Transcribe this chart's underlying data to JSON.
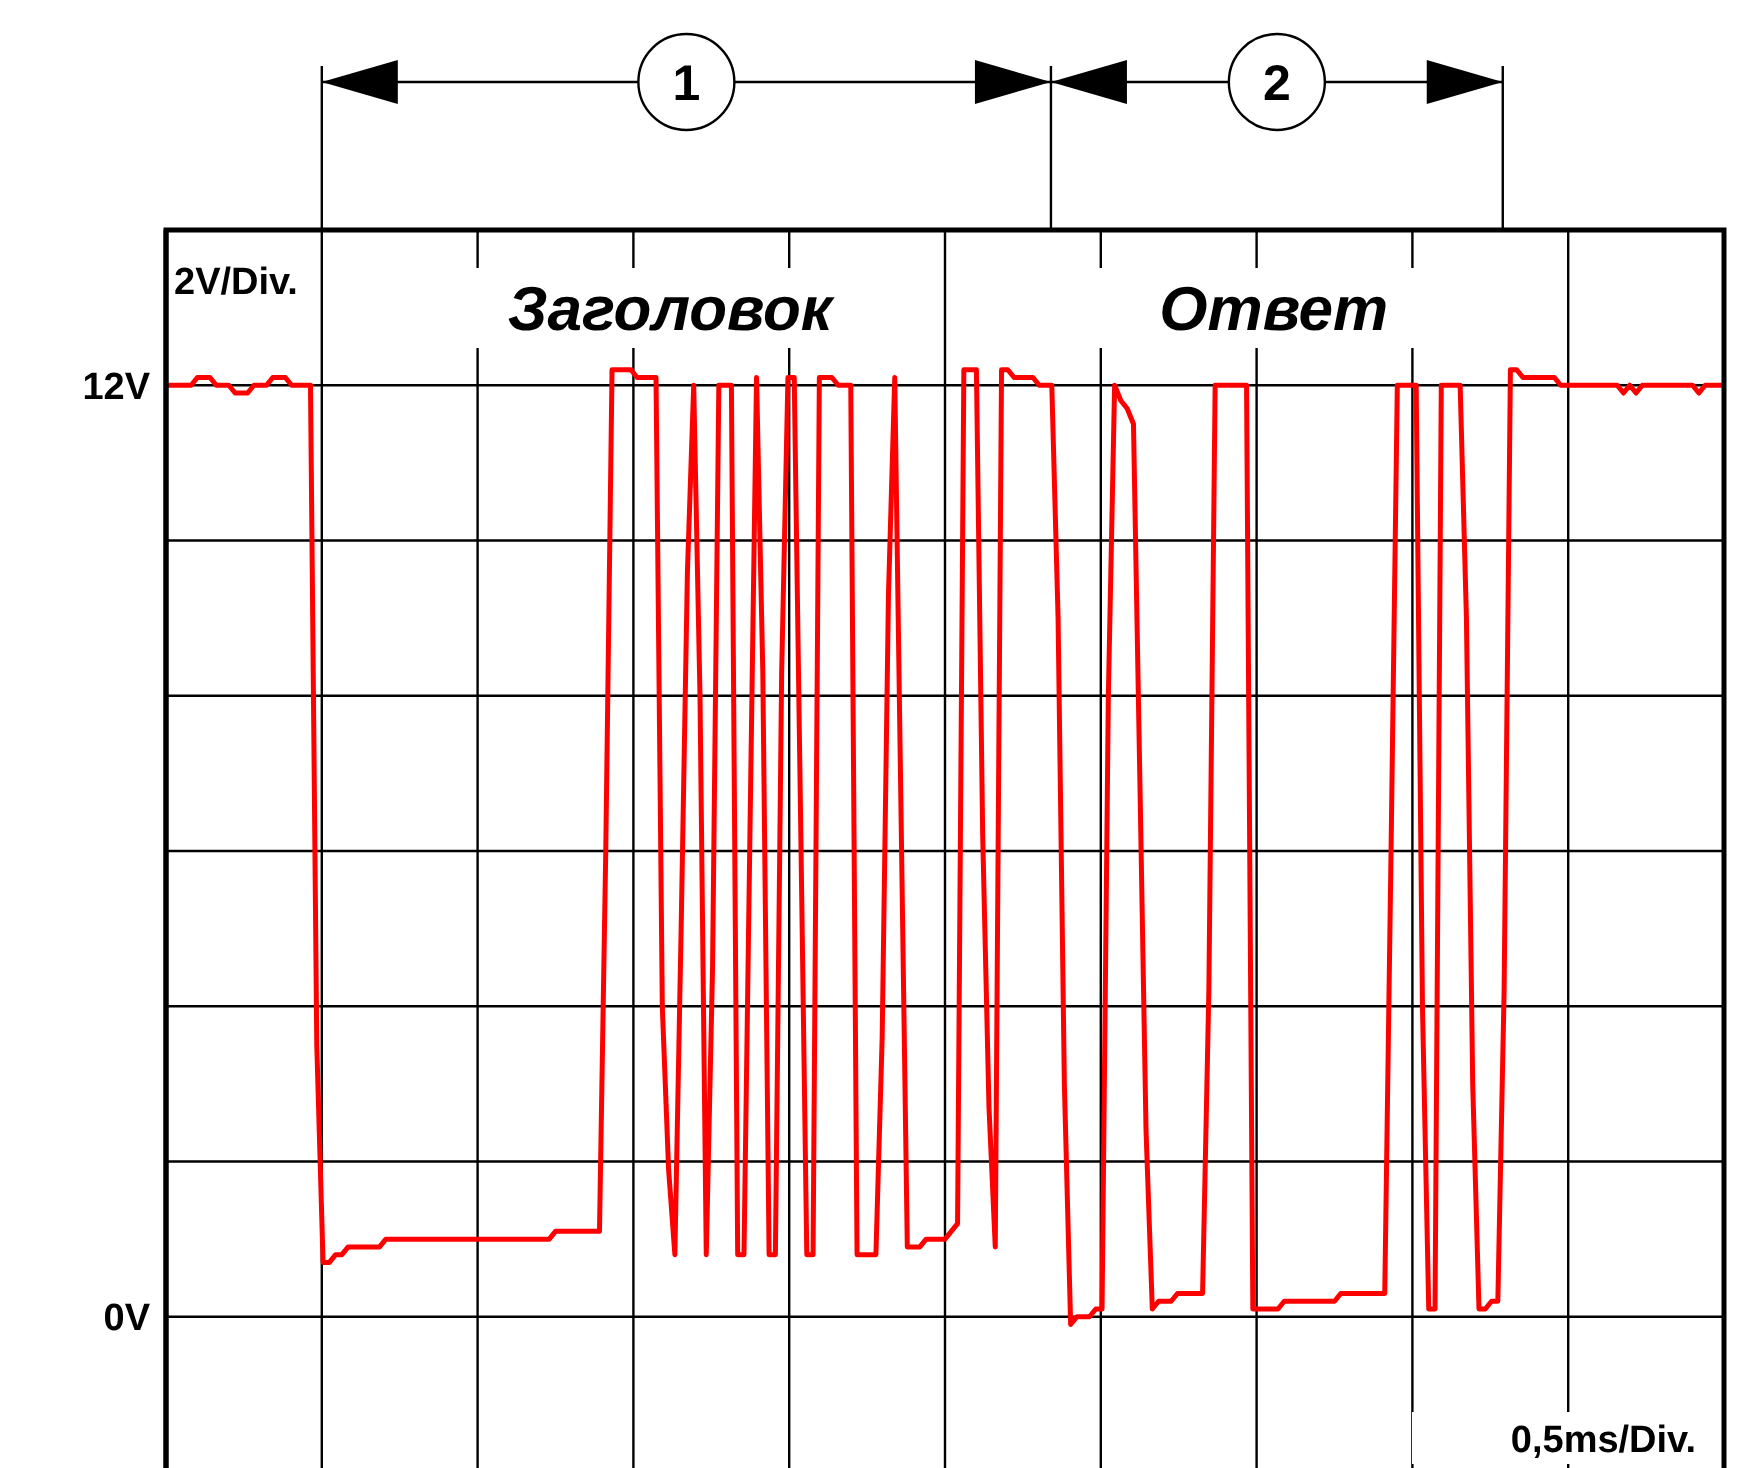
{
  "chart_data": {
    "type": "line",
    "xlabel": "0,5ms/Div.",
    "ylabel": "2V/Div.",
    "categories": [
      null,
      null,
      null,
      null,
      null,
      null,
      null,
      null,
      null,
      null,
      null,
      null,
      null,
      null,
      null,
      null,
      null,
      null,
      null,
      null,
      null,
      null,
      null,
      null,
      null,
      null,
      null,
      null,
      null,
      null,
      null,
      null,
      null,
      null,
      null,
      null,
      null,
      null,
      null,
      null,
      null,
      null,
      null,
      null,
      null,
      null,
      null,
      null,
      null,
      null,
      null,
      null,
      null,
      null,
      null,
      null,
      null,
      null,
      null,
      null,
      null,
      null,
      null,
      null,
      null,
      null,
      null,
      null,
      null,
      null,
      null,
      null,
      null,
      null,
      null,
      null,
      null,
      null,
      null,
      null,
      null,
      null,
      null,
      null,
      null,
      null,
      null,
      null,
      null,
      null,
      null,
      null,
      null,
      null,
      null,
      null,
      null,
      null,
      null,
      null,
      null,
      null,
      null,
      null,
      null,
      null,
      null,
      null,
      null,
      null,
      null,
      null,
      null,
      null,
      null,
      null,
      null,
      null,
      null,
      null,
      null,
      null,
      null,
      null,
      null,
      null,
      null,
      null,
      null,
      null,
      null,
      null,
      null,
      null,
      null,
      null,
      null,
      null,
      null,
      null,
      null,
      null,
      null,
      null,
      null,
      null,
      null,
      null,
      null,
      null,
      null,
      null,
      null,
      null,
      null,
      null,
      null,
      null,
      null,
      null,
      null,
      null,
      null,
      null,
      null,
      null,
      null,
      null,
      null,
      null,
      null,
      null,
      null,
      null,
      null,
      null,
      null,
      null,
      null,
      null,
      null,
      null,
      null,
      null,
      null,
      null,
      null,
      null,
      null,
      null,
      null,
      null,
      null,
      null,
      null,
      null,
      null,
      null,
      null,
      null,
      null,
      null,
      null,
      null,
      null,
      null,
      null,
      null,
      null,
      null,
      null,
      null,
      null,
      null,
      null,
      null,
      null,
      null,
      null,
      null,
      null,
      null,
      null,
      null,
      null,
      null,
      null,
      null,
      null,
      null,
      null,
      null,
      null,
      null,
      null,
      null,
      null,
      null,
      null,
      null,
      null,
      null,
      null,
      null,
      null,
      null,
      null,
      null,
      null
    ],
    "series": [
      {
        "color": "#ff0000",
        "values": [
          12,
          12,
          12,
          12,
          12,
          12.1,
          12.1,
          12.1,
          12,
          12,
          12,
          11.9,
          11.9,
          11.9,
          12,
          12,
          12,
          12.1,
          12.1,
          12.1,
          12,
          12,
          12,
          12,
          3.5,
          0.7,
          0.7,
          0.8,
          0.8,
          0.9,
          0.9,
          0.9,
          0.9,
          0.9,
          0.9,
          1.0,
          1.0,
          1.0,
          1.0,
          1.0,
          1.0,
          1.0,
          1.0,
          1.0,
          1.0,
          1.0,
          1.0,
          1.0,
          1.0,
          1.0,
          1.0,
          1.0,
          1.0,
          1.0,
          1.0,
          1.0,
          1.0,
          1.0,
          1.0,
          1.0,
          1.0,
          1.0,
          1.1,
          1.1,
          1.1,
          1.1,
          1.1,
          1.1,
          1.1,
          1.1,
          6,
          12.2,
          12.2,
          12.2,
          12.2,
          12.1,
          12.1,
          12.1,
          12.1,
          4,
          1.9,
          0.8,
          5,
          9.6,
          12,
          8,
          0.8,
          4.5,
          12,
          12,
          12,
          0.8,
          0.8,
          6.5,
          12.1,
          8.3,
          0.8,
          0.8,
          8.3,
          12.1,
          12.1,
          6.5,
          0.8,
          0.8,
          12.1,
          12.1,
          12.1,
          12,
          12,
          12,
          0.8,
          0.8,
          0.8,
          0.8,
          3.6,
          9.3,
          12.1,
          6.5,
          0.9,
          0.9,
          0.9,
          1.0,
          1.0,
          1.0,
          1.0,
          1.1,
          1.2,
          12.2,
          12.2,
          12.2,
          6.2,
          2.7,
          0.9,
          12.2,
          12.2,
          12.1,
          12.1,
          12.1,
          12.1,
          12,
          12,
          12,
          9,
          3,
          -0.1,
          0,
          0,
          0,
          0.1,
          0.1,
          8,
          12,
          11.8,
          11.7,
          11.5,
          7,
          2.4,
          0.1,
          0.2,
          0.2,
          0.2,
          0.3,
          0.3,
          0.3,
          0.3,
          0.3,
          4.2,
          12,
          12,
          12,
          12,
          12,
          12,
          0.1,
          0.1,
          0.1,
          0.1,
          0.1,
          0.2,
          0.2,
          0.2,
          0.2,
          0.2,
          0.2,
          0.2,
          0.2,
          0.2,
          0.3,
          0.3,
          0.3,
          0.3,
          0.3,
          0.3,
          0.3,
          0.3,
          6,
          12,
          12,
          12,
          12,
          4,
          0.1,
          0.1,
          12,
          12,
          12,
          12,
          9,
          3,
          0.1,
          0.1,
          0.2,
          0.2,
          4.2,
          12.2,
          12.2,
          12.1,
          12.1,
          12.1,
          12.1,
          12.1,
          12.1,
          12,
          12,
          12,
          12,
          12,
          12,
          12,
          12,
          12,
          12,
          11.9,
          12,
          11.9,
          12,
          12,
          12,
          12,
          12,
          12,
          12,
          12,
          12,
          11.9,
          12,
          12,
          12,
          12
        ]
      }
    ],
    "ylim": [
      -2,
      14
    ],
    "yticks": [
      {
        "value": 0,
        "label": "0V"
      },
      {
        "value": 2,
        "label": null
      },
      {
        "value": 4,
        "label": null
      },
      {
        "value": 6,
        "label": null
      },
      {
        "value": 8,
        "label": null
      },
      {
        "value": 10,
        "label": null
      },
      {
        "value": 12,
        "label": "12V"
      }
    ],
    "tick_labels": "y",
    "grid": true,
    "annotations": [
      "1",
      "2",
      "Заголовок",
      "Ответ"
    ]
  }
}
